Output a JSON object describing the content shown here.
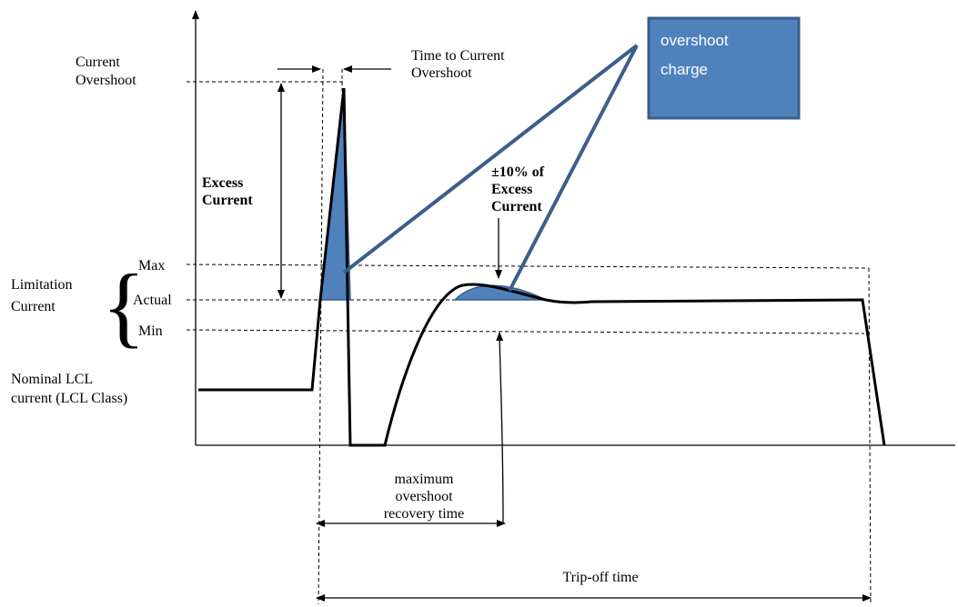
{
  "labels": {
    "current_overshoot": [
      "Current",
      "Overshoot"
    ],
    "time_to_overshoot": [
      "Time to Current",
      "Overshoot"
    ],
    "overshoot_charge": [
      "overshoot",
      "charge"
    ],
    "excess_current": [
      "Excess",
      "Current"
    ],
    "tolerance": [
      "±10% of",
      "Excess",
      "Current"
    ],
    "limitation_current": [
      "Limitation",
      "Current"
    ],
    "max": "Max",
    "actual": "Actual",
    "min": "Min",
    "nominal": [
      "Nominal LCL",
      "current (LCL Class)"
    ],
    "recovery_time": [
      "maximum",
      "overshoot",
      "recovery time"
    ],
    "trip_off_time": "Trip-off time"
  }
}
